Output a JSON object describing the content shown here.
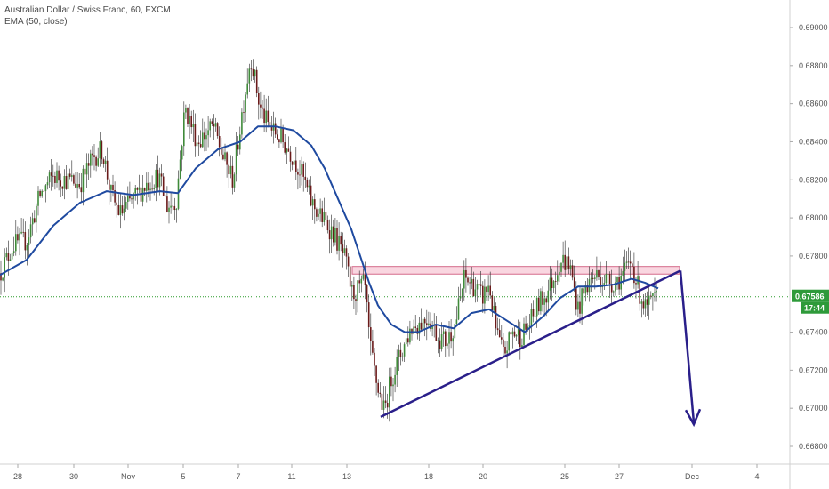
{
  "legend": {
    "title": "Australian Dollar / Swiss Franc, 60, FXCM",
    "indicator": "EMA (50, close)"
  },
  "colors": {
    "candle_up": "#3f8a3a",
    "candle_down": "#6a1a1a",
    "ema": "#1f4aa0",
    "trendline": "#2a1f8a",
    "resistance_fill": "#f9d6e0",
    "resistance_stroke": "#d46a8a",
    "price_line": "#2a9a2a",
    "price_badge": "#2e9a3a",
    "axis_text": "#555555",
    "grid": "#e6e6e6"
  },
  "chart_data": {
    "type": "candlestick",
    "title": "Australian Dollar / Swiss Franc, 60, FXCM",
    "indicator": "EMA (50, close)",
    "y_ticks": [
      "0.69000",
      "0.68800",
      "0.68600",
      "0.68400",
      "0.68200",
      "0.68000",
      "0.67800",
      "0.67400",
      "0.67200",
      "0.67000",
      "0.66800"
    ],
    "y_values": [
      0.69,
      0.688,
      0.686,
      0.684,
      0.682,
      0.68,
      0.678,
      0.674,
      0.672,
      0.67,
      0.668
    ],
    "ylim": [
      0.6669,
      0.6906
    ],
    "x_ticks": [
      "28",
      "30",
      "Nov",
      "5",
      "7",
      "11",
      "13",
      "18",
      "20",
      "25",
      "27",
      "Dec",
      "4"
    ],
    "last_price": "0.67586",
    "last_price_value": 0.67586,
    "countdown": "17:44",
    "price_path": [
      [
        0,
        0.6771
      ],
      [
        15,
        0.6786
      ],
      [
        30,
        0.6788
      ],
      [
        45,
        0.6812
      ],
      [
        60,
        0.6822
      ],
      [
        75,
        0.682
      ],
      [
        90,
        0.6818
      ],
      [
        105,
        0.6832
      ],
      [
        115,
        0.6836
      ],
      [
        125,
        0.6812
      ],
      [
        135,
        0.6802
      ],
      [
        150,
        0.681
      ],
      [
        165,
        0.6818
      ],
      [
        178,
        0.6822
      ],
      [
        188,
        0.6806
      ],
      [
        198,
        0.6808
      ],
      [
        208,
        0.6858
      ],
      [
        222,
        0.684
      ],
      [
        240,
        0.6848
      ],
      [
        252,
        0.683
      ],
      [
        262,
        0.682
      ],
      [
        272,
        0.6855
      ],
      [
        282,
        0.6885
      ],
      [
        292,
        0.6858
      ],
      [
        302,
        0.6848
      ],
      [
        315,
        0.6842
      ],
      [
        330,
        0.6832
      ],
      [
        340,
        0.6822
      ],
      [
        350,
        0.6808
      ],
      [
        362,
        0.68
      ],
      [
        375,
        0.6792
      ],
      [
        388,
        0.6778
      ],
      [
        396,
        0.676
      ],
      [
        402,
        0.6762
      ],
      [
        410,
        0.6765
      ],
      [
        416,
        0.6732
      ],
      [
        424,
        0.6712
      ],
      [
        432,
        0.6698
      ],
      [
        440,
        0.6716
      ],
      [
        450,
        0.6728
      ],
      [
        462,
        0.6742
      ],
      [
        472,
        0.6745
      ],
      [
        482,
        0.6748
      ],
      [
        492,
        0.6738
      ],
      [
        502,
        0.6735
      ],
      [
        512,
        0.6745
      ],
      [
        522,
        0.6768
      ],
      [
        532,
        0.6765
      ],
      [
        542,
        0.6758
      ],
      [
        550,
        0.6765
      ],
      [
        558,
        0.674
      ],
      [
        566,
        0.6728
      ],
      [
        576,
        0.674
      ],
      [
        586,
        0.6738
      ],
      [
        596,
        0.6745
      ],
      [
        606,
        0.6755
      ],
      [
        614,
        0.676
      ],
      [
        622,
        0.6768
      ],
      [
        630,
        0.6778
      ],
      [
        640,
        0.6776
      ],
      [
        650,
        0.6752
      ],
      [
        660,
        0.6765
      ],
      [
        670,
        0.677
      ],
      [
        680,
        0.6768
      ],
      [
        690,
        0.6766
      ],
      [
        700,
        0.677
      ],
      [
        710,
        0.6777
      ],
      [
        718,
        0.6762
      ],
      [
        726,
        0.6752
      ],
      [
        734,
        0.6756
      ],
      [
        740,
        0.6757
      ]
    ],
    "ema_path": [
      [
        0,
        0.677
      ],
      [
        30,
        0.6778
      ],
      [
        60,
        0.6796
      ],
      [
        90,
        0.6808
      ],
      [
        120,
        0.6814
      ],
      [
        150,
        0.6812
      ],
      [
        180,
        0.6814
      ],
      [
        200,
        0.6813
      ],
      [
        220,
        0.6826
      ],
      [
        245,
        0.6836
      ],
      [
        270,
        0.684
      ],
      [
        290,
        0.6848
      ],
      [
        310,
        0.6848
      ],
      [
        330,
        0.6846
      ],
      [
        350,
        0.6838
      ],
      [
        365,
        0.6826
      ],
      [
        380,
        0.681
      ],
      [
        395,
        0.6794
      ],
      [
        405,
        0.678
      ],
      [
        415,
        0.6766
      ],
      [
        425,
        0.6754
      ],
      [
        440,
        0.6744
      ],
      [
        455,
        0.674
      ],
      [
        470,
        0.674
      ],
      [
        490,
        0.6744
      ],
      [
        510,
        0.6742
      ],
      [
        530,
        0.675
      ],
      [
        550,
        0.6752
      ],
      [
        570,
        0.6746
      ],
      [
        590,
        0.674
      ],
      [
        610,
        0.6748
      ],
      [
        630,
        0.6758
      ],
      [
        650,
        0.6764
      ],
      [
        670,
        0.6764
      ],
      [
        690,
        0.6765
      ],
      [
        710,
        0.6768
      ],
      [
        725,
        0.6766
      ],
      [
        740,
        0.6763
      ]
    ],
    "annotations": {
      "resistance_zone": {
        "y_top": 0.67745,
        "y_bottom": 0.67705,
        "x_start": 396,
        "x_end": 764
      },
      "trendline": {
        "from": [
          428,
          0.66955
        ],
        "to": [
          765,
          0.67723
        ]
      },
      "arrow": {
        "from": [
          765,
          0.67723
        ],
        "to": [
          780,
          0.66925
        ]
      }
    }
  }
}
